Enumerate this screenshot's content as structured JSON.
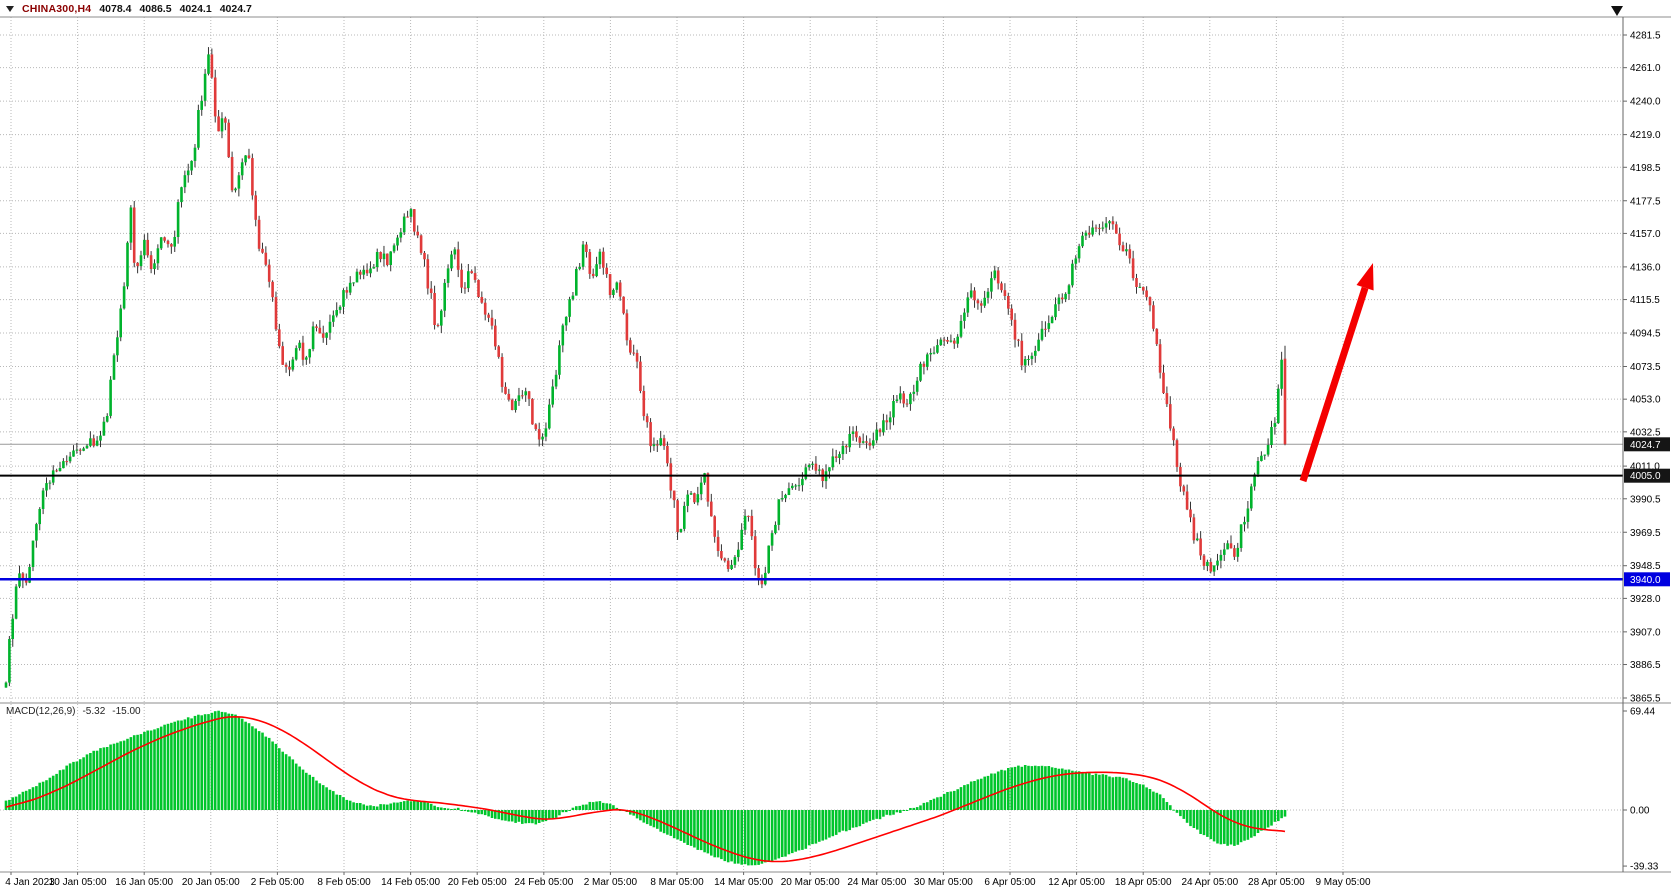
{
  "header": {
    "symbol": "CHINA300,H4",
    "open": "4078.4",
    "high": "4086.5",
    "low": "4024.1",
    "close": "4024.7"
  },
  "macd": {
    "name": "MACD(12,26,9)",
    "main_value": "-5.32",
    "signal_value": "-15.00",
    "axis_ticks": [
      "69.44",
      "0.00",
      "-39.33"
    ]
  },
  "price_axis": {
    "ticks": [
      "4281.5",
      "4261.0",
      "4240.0",
      "4219.0",
      "4198.5",
      "4177.5",
      "4157.0",
      "4136.0",
      "4115.5",
      "4094.5",
      "4073.5",
      "4053.0",
      "4032.5",
      "4011.0",
      "3990.5",
      "3969.5",
      "3948.5",
      "3928.0",
      "3907.0",
      "3886.5",
      "3865.5"
    ],
    "tags": [
      {
        "label": "4024.7",
        "value": 4024.7,
        "bg": "dark"
      },
      {
        "label": "4005.0",
        "value": 4005.0,
        "bg": "dark"
      },
      {
        "label": "3940.0",
        "value": 3940.0,
        "bg": "blue"
      }
    ]
  },
  "time_axis": {
    "labels": [
      "4 Jan 2023",
      "10 Jan 05:00",
      "16 Jan 05:00",
      "20 Jan 05:00",
      "2 Feb 05:00",
      "8 Feb 05:00",
      "14 Feb 05:00",
      "20 Feb 05:00",
      "24 Feb 05:00",
      "2 Mar 05:00",
      "8 Mar 05:00",
      "14 Mar 05:00",
      "20 Mar 05:00",
      "24 Mar 05:00",
      "30 Mar 05:00",
      "6 Apr 05:00",
      "12 Apr 05:00",
      "18 Apr 05:00",
      "24 Apr 05:00",
      "28 Apr 05:00",
      "9 May 05:00"
    ]
  },
  "lines": [
    {
      "value": 4005.0,
      "color_key": "hline_black",
      "width": 2
    },
    {
      "value": 3940.0,
      "color_key": "hline_blue",
      "width": 2.5
    }
  ],
  "annotations": {
    "trend_arrow": {
      "from": [
        1303,
        481
      ],
      "to": [
        1373,
        263
      ],
      "meaning": "bullish-projection"
    }
  },
  "colors": {
    "background": "#FFFFFF",
    "grid": "#B8B8B8",
    "up": "#00B32C",
    "down": "#E03A3A",
    "wick": "#333333",
    "histogram": "#00C52B",
    "signal_line": "#FF0000",
    "axis_text": "#000000",
    "separator": "#8C8C8C",
    "frame": "#666666",
    "tag_dark_bg": "#151515",
    "tag_blue_bg": "#0000E0",
    "tag_text": "#FFFFFF",
    "hline_black": "#000000",
    "hline_blue": "#0000E0",
    "last_price_line": "#999999",
    "arrow": "#F40000",
    "shift_marker": "#111111"
  },
  "chart_data": {
    "type": "candlestick",
    "title": "CHINA300,H4",
    "symbol": "CHINA300",
    "timeframe": "H4",
    "visible_range": {
      "start": "4 Jan 2023",
      "end": "9 May 2023"
    },
    "last_bar_ohlc": {
      "open": 4078.4,
      "high": 4086.5,
      "low": 4024.1,
      "close": 4024.7
    },
    "price_axis_range": [
      3865.5,
      4281.5
    ],
    "macd_axis": {
      "max": 69.44,
      "min": -39.33,
      "zero": 0.0
    },
    "x_max": 1205,
    "price_path": [
      [
        0,
        3872
      ],
      [
        4,
        3908
      ],
      [
        8,
        3925
      ],
      [
        14,
        3945
      ],
      [
        20,
        3938
      ],
      [
        30,
        3985
      ],
      [
        42,
        4005
      ],
      [
        55,
        4015
      ],
      [
        70,
        4022
      ],
      [
        85,
        4028
      ],
      [
        95,
        4040
      ],
      [
        102,
        4085
      ],
      [
        110,
        4120
      ],
      [
        117,
        4172
      ],
      [
        123,
        4130
      ],
      [
        130,
        4152
      ],
      [
        138,
        4135
      ],
      [
        147,
        4158
      ],
      [
        156,
        4148
      ],
      [
        166,
        4188
      ],
      [
        176,
        4205
      ],
      [
        186,
        4250
      ],
      [
        192,
        4272
      ],
      [
        199,
        4222
      ],
      [
        206,
        4232
      ],
      [
        214,
        4182
      ],
      [
        221,
        4198
      ],
      [
        229,
        4208
      ],
      [
        237,
        4152
      ],
      [
        247,
        4136
      ],
      [
        257,
        4082
      ],
      [
        267,
        4068
      ],
      [
        275,
        4088
      ],
      [
        283,
        4076
      ],
      [
        291,
        4100
      ],
      [
        300,
        4094
      ],
      [
        310,
        4110
      ],
      [
        321,
        4120
      ],
      [
        331,
        4136
      ],
      [
        340,
        4128
      ],
      [
        350,
        4146
      ],
      [
        360,
        4140
      ],
      [
        370,
        4156
      ],
      [
        380,
        4174
      ],
      [
        390,
        4150
      ],
      [
        398,
        4126
      ],
      [
        406,
        4096
      ],
      [
        414,
        4126
      ],
      [
        422,
        4154
      ],
      [
        430,
        4120
      ],
      [
        438,
        4136
      ],
      [
        448,
        4112
      ],
      [
        458,
        4096
      ],
      [
        468,
        4062
      ],
      [
        478,
        4048
      ],
      [
        488,
        4060
      ],
      [
        498,
        4036
      ],
      [
        507,
        4024
      ],
      [
        515,
        4058
      ],
      [
        525,
        4098
      ],
      [
        535,
        4124
      ],
      [
        544,
        4148
      ],
      [
        552,
        4130
      ],
      [
        560,
        4144
      ],
      [
        570,
        4120
      ],
      [
        578,
        4124
      ],
      [
        586,
        4090
      ],
      [
        594,
        4076
      ],
      [
        602,
        4042
      ],
      [
        610,
        4020
      ],
      [
        618,
        4032
      ],
      [
        626,
        4000
      ],
      [
        634,
        3966
      ],
      [
        642,
        3994
      ],
      [
        650,
        3990
      ],
      [
        658,
        4006
      ],
      [
        666,
        3976
      ],
      [
        674,
        3952
      ],
      [
        682,
        3942
      ],
      [
        690,
        3962
      ],
      [
        698,
        3990
      ],
      [
        706,
        3946
      ],
      [
        712,
        3938
      ],
      [
        720,
        3962
      ],
      [
        728,
        3986
      ],
      [
        736,
        4000
      ],
      [
        744,
        3996
      ],
      [
        752,
        4006
      ],
      [
        760,
        4012
      ],
      [
        770,
        4002
      ],
      [
        780,
        4018
      ],
      [
        790,
        4026
      ],
      [
        800,
        4030
      ],
      [
        810,
        4021
      ],
      [
        820,
        4030
      ],
      [
        830,
        4041
      ],
      [
        840,
        4056
      ],
      [
        850,
        4050
      ],
      [
        860,
        4070
      ],
      [
        870,
        4081
      ],
      [
        880,
        4090
      ],
      [
        890,
        4086
      ],
      [
        900,
        4101
      ],
      [
        910,
        4121
      ],
      [
        920,
        4111
      ],
      [
        930,
        4136
      ],
      [
        940,
        4120
      ],
      [
        948,
        4101
      ],
      [
        958,
        4076
      ],
      [
        968,
        4086
      ],
      [
        978,
        4096
      ],
      [
        988,
        4111
      ],
      [
        998,
        4121
      ],
      [
        1008,
        4141
      ],
      [
        1018,
        4161
      ],
      [
        1028,
        4156
      ],
      [
        1038,
        4166
      ],
      [
        1048,
        4151
      ],
      [
        1058,
        4141
      ],
      [
        1068,
        4121
      ],
      [
        1078,
        4111
      ],
      [
        1088,
        4071
      ],
      [
        1098,
        4031
      ],
      [
        1108,
        3996
      ],
      [
        1118,
        3971
      ],
      [
        1128,
        3951
      ],
      [
        1138,
        3946
      ],
      [
        1148,
        3961
      ],
      [
        1158,
        3956
      ],
      [
        1168,
        3981
      ],
      [
        1178,
        4011
      ],
      [
        1188,
        4021
      ],
      [
        1196,
        4041
      ],
      [
        1202,
        4079
      ],
      [
        1205,
        4025
      ]
    ],
    "macd_histogram": [
      [
        0,
        6
      ],
      [
        20,
        14
      ],
      [
        40,
        22
      ],
      [
        60,
        32
      ],
      [
        80,
        40
      ],
      [
        100,
        46
      ],
      [
        120,
        52
      ],
      [
        140,
        57
      ],
      [
        160,
        62
      ],
      [
        180,
        66
      ],
      [
        200,
        69
      ],
      [
        215,
        67
      ],
      [
        230,
        60
      ],
      [
        245,
        52
      ],
      [
        260,
        42
      ],
      [
        275,
        32
      ],
      [
        290,
        22
      ],
      [
        305,
        14
      ],
      [
        320,
        8
      ],
      [
        335,
        4
      ],
      [
        350,
        3
      ],
      [
        365,
        5
      ],
      [
        380,
        7
      ],
      [
        395,
        5
      ],
      [
        410,
        2
      ],
      [
        425,
        1
      ],
      [
        440,
        -2
      ],
      [
        455,
        -5
      ],
      [
        470,
        -8
      ],
      [
        485,
        -9
      ],
      [
        500,
        -10
      ],
      [
        515,
        -6
      ],
      [
        525,
        -2
      ],
      [
        540,
        3
      ],
      [
        555,
        6
      ],
      [
        565,
        5
      ],
      [
        575,
        2
      ],
      [
        590,
        -4
      ],
      [
        605,
        -10
      ],
      [
        620,
        -16
      ],
      [
        635,
        -22
      ],
      [
        650,
        -27
      ],
      [
        665,
        -32
      ],
      [
        680,
        -36
      ],
      [
        695,
        -38.5
      ],
      [
        710,
        -38
      ],
      [
        725,
        -35
      ],
      [
        740,
        -31
      ],
      [
        755,
        -26
      ],
      [
        770,
        -21
      ],
      [
        785,
        -16
      ],
      [
        800,
        -12
      ],
      [
        815,
        -8
      ],
      [
        830,
        -4
      ],
      [
        845,
        -1
      ],
      [
        860,
        3
      ],
      [
        875,
        8
      ],
      [
        890,
        13
      ],
      [
        905,
        18
      ],
      [
        920,
        23
      ],
      [
        935,
        27
      ],
      [
        950,
        30
      ],
      [
        965,
        31.5
      ],
      [
        980,
        31
      ],
      [
        995,
        29
      ],
      [
        1010,
        27
      ],
      [
        1025,
        25
      ],
      [
        1040,
        24
      ],
      [
        1055,
        22
      ],
      [
        1070,
        18
      ],
      [
        1085,
        12
      ],
      [
        1095,
        5
      ],
      [
        1105,
        -3
      ],
      [
        1115,
        -10
      ],
      [
        1125,
        -16
      ],
      [
        1135,
        -21
      ],
      [
        1145,
        -24
      ],
      [
        1155,
        -25
      ],
      [
        1165,
        -23
      ],
      [
        1175,
        -19
      ],
      [
        1185,
        -14
      ],
      [
        1195,
        -9
      ],
      [
        1205,
        -5.32
      ]
    ],
    "macd_signal": [
      [
        0,
        2
      ],
      [
        30,
        8
      ],
      [
        60,
        18
      ],
      [
        90,
        30
      ],
      [
        120,
        42
      ],
      [
        150,
        52
      ],
      [
        180,
        60
      ],
      [
        210,
        66
      ],
      [
        230,
        65
      ],
      [
        250,
        60
      ],
      [
        270,
        52
      ],
      [
        290,
        42
      ],
      [
        310,
        31
      ],
      [
        330,
        21
      ],
      [
        350,
        13
      ],
      [
        370,
        8
      ],
      [
        390,
        6
      ],
      [
        410,
        5
      ],
      [
        430,
        3
      ],
      [
        450,
        1
      ],
      [
        470,
        -2
      ],
      [
        490,
        -5
      ],
      [
        510,
        -7
      ],
      [
        530,
        -5
      ],
      [
        550,
        -2
      ],
      [
        570,
        0
      ],
      [
        580,
        1
      ],
      [
        600,
        -3
      ],
      [
        620,
        -9
      ],
      [
        640,
        -16
      ],
      [
        660,
        -23
      ],
      [
        680,
        -29
      ],
      [
        700,
        -34
      ],
      [
        720,
        -36.5
      ],
      [
        740,
        -36
      ],
      [
        760,
        -33
      ],
      [
        780,
        -29
      ],
      [
        800,
        -24
      ],
      [
        820,
        -19
      ],
      [
        840,
        -14
      ],
      [
        860,
        -9
      ],
      [
        880,
        -4
      ],
      [
        900,
        2
      ],
      [
        920,
        8
      ],
      [
        940,
        14
      ],
      [
        960,
        19
      ],
      [
        980,
        23
      ],
      [
        1000,
        25.5
      ],
      [
        1020,
        26.5
      ],
      [
        1040,
        26.5
      ],
      [
        1060,
        25.5
      ],
      [
        1080,
        23
      ],
      [
        1095,
        19
      ],
      [
        1110,
        13
      ],
      [
        1125,
        6
      ],
      [
        1140,
        -2
      ],
      [
        1155,
        -8
      ],
      [
        1170,
        -12
      ],
      [
        1185,
        -14
      ],
      [
        1200,
        -14.5
      ],
      [
        1205,
        -15
      ]
    ]
  }
}
